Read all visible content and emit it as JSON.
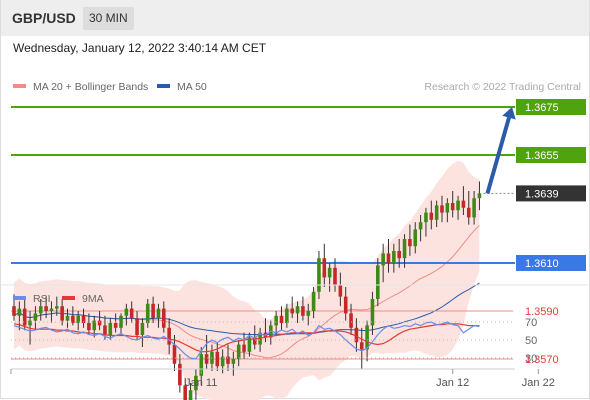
{
  "header": {
    "symbol": "GBP/USD",
    "timeframe": "30 MIN",
    "timestamp": "Wednesday, January 12, 2022 3:40:14 AM CET"
  },
  "chart_data": [
    {
      "type": "candlestick",
      "legend": [
        {
          "label": "MA 20 + Bollinger Bands",
          "color": "#f28b82"
        },
        {
          "label": "MA 50",
          "color": "#2a5caa"
        }
      ],
      "watermark": "Research © 2022 Trading Central",
      "ylim": [
        1.354,
        1.369
      ],
      "grid": false,
      "last_price": {
        "value": 1.3639,
        "label": "1.3639",
        "color": "#333333"
      },
      "levels": [
        {
          "value": 1.3675,
          "label": "1.3675",
          "kind": "target",
          "color": "#4fa30f"
        },
        {
          "value": 1.3655,
          "label": "1.3655",
          "kind": "target",
          "color": "#4fa30f"
        },
        {
          "value": 1.361,
          "label": "1.3610",
          "kind": "pivot",
          "color": "#3b78e7"
        },
        {
          "value": 1.359,
          "label": "1.3590",
          "kind": "support",
          "color": "#e53935"
        },
        {
          "value": 1.357,
          "label": "1.3570",
          "kind": "support",
          "color": "#e53935"
        }
      ],
      "arrow": {
        "from": 1.3639,
        "to": 1.3675,
        "color": "#2a5caa"
      },
      "candles": [
        [
          1.3592,
          1.3597,
          1.3586,
          1.3588
        ],
        [
          1.3588,
          1.3594,
          1.3582,
          1.3591
        ],
        [
          1.3591,
          1.3596,
          1.3582,
          1.3584
        ],
        [
          1.3584,
          1.359,
          1.3576,
          1.3586
        ],
        [
          1.3586,
          1.3592,
          1.3582,
          1.3589
        ],
        [
          1.3589,
          1.3595,
          1.3586,
          1.3592
        ],
        [
          1.3592,
          1.3596,
          1.3587,
          1.359
        ],
        [
          1.359,
          1.3594,
          1.3585,
          1.3591
        ],
        [
          1.3591,
          1.3596,
          1.3588,
          1.3592
        ],
        [
          1.3592,
          1.3595,
          1.3584,
          1.3586
        ],
        [
          1.3586,
          1.3591,
          1.3583,
          1.3588
        ],
        [
          1.3588,
          1.3592,
          1.3584,
          1.3585
        ],
        [
          1.3585,
          1.359,
          1.3582,
          1.3588
        ],
        [
          1.3588,
          1.3591,
          1.3583,
          1.3585
        ],
        [
          1.3585,
          1.3589,
          1.358,
          1.3582
        ],
        [
          1.3582,
          1.3588,
          1.3579,
          1.3586
        ],
        [
          1.3586,
          1.359,
          1.3582,
          1.3584
        ],
        [
          1.3584,
          1.3588,
          1.3578,
          1.358
        ],
        [
          1.358,
          1.3587,
          1.3578,
          1.3585
        ],
        [
          1.3585,
          1.3589,
          1.3581,
          1.3583
        ],
        [
          1.3583,
          1.3589,
          1.358,
          1.3588
        ],
        [
          1.3588,
          1.3593,
          1.3584,
          1.3591
        ],
        [
          1.3591,
          1.3594,
          1.3585,
          1.3587
        ],
        [
          1.3587,
          1.359,
          1.3578,
          1.358
        ],
        [
          1.358,
          1.3587,
          1.3575,
          1.3585
        ],
        [
          1.3585,
          1.3595,
          1.3583,
          1.3593
        ],
        [
          1.3593,
          1.3596,
          1.3585,
          1.3587
        ],
        [
          1.3587,
          1.3593,
          1.3583,
          1.3591
        ],
        [
          1.3591,
          1.3594,
          1.3581,
          1.3583
        ],
        [
          1.3583,
          1.3587,
          1.3572,
          1.3576
        ],
        [
          1.3576,
          1.358,
          1.3565,
          1.3568
        ],
        [
          1.3568,
          1.3572,
          1.3556,
          1.3559
        ],
        [
          1.3559,
          1.3562,
          1.3549,
          1.3552
        ],
        [
          1.3552,
          1.356,
          1.3547,
          1.3557
        ],
        [
          1.3557,
          1.3566,
          1.3553,
          1.3563
        ],
        [
          1.3563,
          1.3575,
          1.3559,
          1.3572
        ],
        [
          1.3572,
          1.358,
          1.3566,
          1.3568
        ],
        [
          1.3568,
          1.3576,
          1.3565,
          1.3573
        ],
        [
          1.3573,
          1.3577,
          1.3565,
          1.3567
        ],
        [
          1.3567,
          1.3574,
          1.3564,
          1.3571
        ],
        [
          1.3571,
          1.3576,
          1.3565,
          1.3568
        ],
        [
          1.3568,
          1.3573,
          1.3563,
          1.357
        ],
        [
          1.357,
          1.3578,
          1.3567,
          1.3576
        ],
        [
          1.3576,
          1.3581,
          1.357,
          1.3573
        ],
        [
          1.3573,
          1.3581,
          1.3571,
          1.3579
        ],
        [
          1.3579,
          1.3584,
          1.3574,
          1.3576
        ],
        [
          1.3576,
          1.3583,
          1.3573,
          1.3581
        ],
        [
          1.3581,
          1.3587,
          1.3577,
          1.3579
        ],
        [
          1.3579,
          1.3586,
          1.3576,
          1.3584
        ],
        [
          1.3584,
          1.359,
          1.358,
          1.3588
        ],
        [
          1.3588,
          1.3592,
          1.3582,
          1.3585
        ],
        [
          1.3585,
          1.3593,
          1.3583,
          1.3591
        ],
        [
          1.3591,
          1.3596,
          1.3587,
          1.3589
        ],
        [
          1.3589,
          1.3594,
          1.3585,
          1.3592
        ],
        [
          1.3592,
          1.3596,
          1.3586,
          1.3588
        ],
        [
          1.3588,
          1.3593,
          1.3584,
          1.359
        ],
        [
          1.359,
          1.36,
          1.3587,
          1.3598
        ],
        [
          1.3598,
          1.3615,
          1.3595,
          1.3612
        ],
        [
          1.3612,
          1.3618,
          1.36,
          1.3604
        ],
        [
          1.3604,
          1.361,
          1.3598,
          1.3608
        ],
        [
          1.3608,
          1.3612,
          1.3598,
          1.3601
        ],
        [
          1.3601,
          1.3606,
          1.3592,
          1.3596
        ],
        [
          1.3596,
          1.36,
          1.3586,
          1.3589
        ],
        [
          1.3589,
          1.3593,
          1.358,
          1.3583
        ],
        [
          1.3583,
          1.3587,
          1.3573,
          1.3577
        ],
        [
          1.3577,
          1.3583,
          1.3566,
          1.3574
        ],
        [
          1.3574,
          1.3586,
          1.3569,
          1.3584
        ],
        [
          1.3584,
          1.3598,
          1.358,
          1.3595
        ],
        [
          1.3595,
          1.3612,
          1.3592,
          1.3609
        ],
        [
          1.3609,
          1.3618,
          1.3602,
          1.3614
        ],
        [
          1.3614,
          1.362,
          1.3606,
          1.361
        ],
        [
          1.361,
          1.3618,
          1.3606,
          1.3615
        ],
        [
          1.3615,
          1.362,
          1.3608,
          1.3612
        ],
        [
          1.3612,
          1.3622,
          1.3608,
          1.362
        ],
        [
          1.362,
          1.3626,
          1.3613,
          1.3617
        ],
        [
          1.3617,
          1.3627,
          1.3614,
          1.3624
        ],
        [
          1.3624,
          1.363,
          1.3619,
          1.3627
        ],
        [
          1.3627,
          1.3633,
          1.3621,
          1.3631
        ],
        [
          1.3631,
          1.3636,
          1.3624,
          1.3628
        ],
        [
          1.3628,
          1.3636,
          1.3625,
          1.3634
        ],
        [
          1.3634,
          1.3638,
          1.3627,
          1.3631
        ],
        [
          1.3631,
          1.3637,
          1.3627,
          1.3635
        ],
        [
          1.3635,
          1.364,
          1.3629,
          1.3632
        ],
        [
          1.3632,
          1.3638,
          1.3628,
          1.3636
        ],
        [
          1.3636,
          1.3642,
          1.363,
          1.3633
        ],
        [
          1.3633,
          1.364,
          1.3626,
          1.3629
        ],
        [
          1.3629,
          1.364,
          1.3626,
          1.3637
        ],
        [
          1.3637,
          1.3644,
          1.3632,
          1.3639
        ]
      ]
    },
    {
      "type": "line",
      "legend": [
        {
          "label": "RSI",
          "color": "#6a8ee8"
        },
        {
          "label": "9MA",
          "color": "#e53935"
        }
      ],
      "ylim": [
        20,
        80
      ],
      "ticks": [
        70,
        50,
        30
      ],
      "tick_labels": [
        "70",
        "50",
        "30"
      ],
      "rsi": [
        66,
        64,
        62,
        60,
        61,
        63,
        64,
        61,
        59,
        60,
        62,
        58,
        57,
        59,
        56,
        55,
        57,
        54,
        52,
        55,
        57,
        54,
        51,
        50,
        53,
        55,
        52,
        51,
        54,
        50,
        45,
        40,
        34,
        30,
        29,
        38,
        46,
        50,
        47,
        51,
        53,
        49,
        52,
        50,
        55,
        52,
        57,
        55,
        60,
        58,
        61,
        59,
        62,
        57,
        60,
        55,
        58,
        66,
        62,
        63,
        60,
        56,
        50,
        45,
        40,
        38,
        41,
        48,
        56,
        62,
        66,
        63,
        64,
        66,
        65,
        68,
        66,
        69,
        70,
        67,
        68,
        70,
        67,
        66,
        58,
        62,
        66,
        65
      ],
      "ma9": [
        68,
        67,
        65,
        63,
        62,
        62,
        62,
        62,
        61,
        61,
        60,
        60,
        59,
        58,
        58,
        57,
        57,
        56,
        55,
        55,
        55,
        55,
        54,
        54,
        53,
        53,
        53,
        52,
        52,
        51,
        50,
        48,
        45,
        42,
        39,
        37,
        37,
        38,
        40,
        43,
        46,
        48,
        49,
        50,
        51,
        51,
        52,
        53,
        54,
        55,
        56,
        57,
        58,
        58,
        58,
        58,
        58,
        59,
        60,
        60,
        60,
        60,
        59,
        57,
        54,
        51,
        48,
        46,
        45,
        46,
        49,
        53,
        57,
        60,
        62,
        63,
        64,
        65,
        66,
        67,
        67,
        68,
        68,
        68,
        67,
        66,
        66,
        66
      ],
      "x_ticks": [
        {
          "index": 35,
          "label": "Jan 11"
        },
        {
          "index": 82,
          "label": "Jan 12"
        },
        {
          "index": 98,
          "label": "Jan 22"
        }
      ]
    }
  ]
}
